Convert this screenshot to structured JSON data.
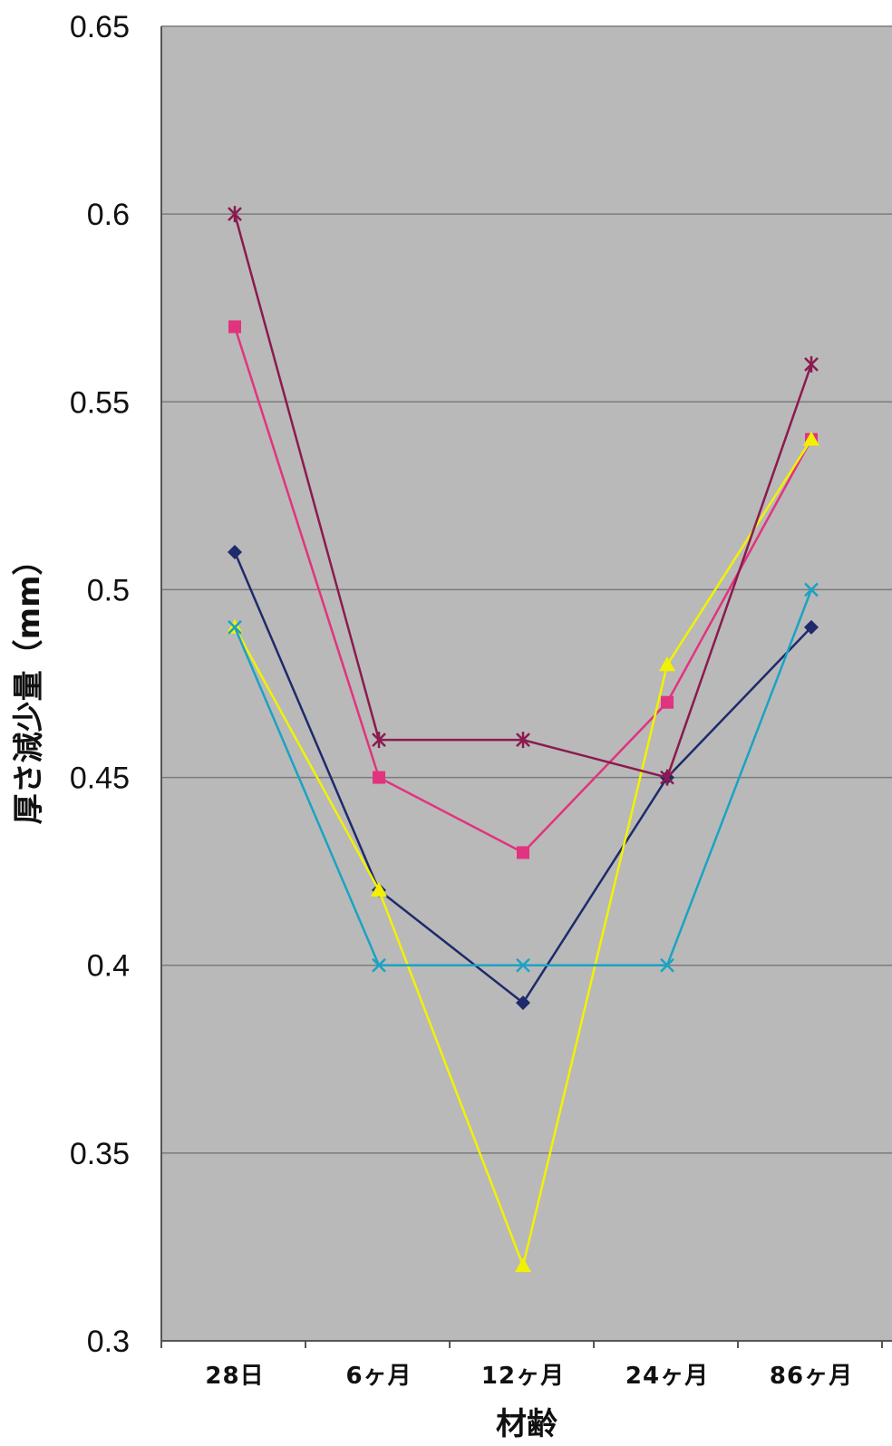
{
  "chart_data": {
    "type": "line",
    "xlabel": "材齢",
    "ylabel": "厚さ減少量（mm）",
    "categories": [
      "28日",
      "6ヶ月",
      "12ヶ月",
      "24ヶ月",
      "86ヶ月"
    ],
    "ylim": [
      0.3,
      0.65
    ],
    "yticks": [
      "0.65",
      "0.6",
      "0.55",
      "0.5",
      "0.45",
      "0.4",
      "0.35",
      "0.3"
    ],
    "ytick_values": [
      0.65,
      0.6,
      0.55,
      0.5,
      0.45,
      0.4,
      0.35,
      0.3
    ],
    "grid": "horizontal",
    "plot_background": "#b9b9b9",
    "series": [
      {
        "values": [
          0.51,
          0.42,
          0.39,
          0.45,
          0.49
        ],
        "color": "#1f2a6b",
        "marker": "diamond"
      },
      {
        "values": [
          0.57,
          0.45,
          0.43,
          0.47,
          0.54
        ],
        "color": "#e2337f",
        "marker": "square"
      },
      {
        "values": [
          0.49,
          0.42,
          0.32,
          0.48,
          0.54
        ],
        "color": "#f2f200",
        "marker": "triangle"
      },
      {
        "values": [
          0.49,
          0.4,
          0.4,
          0.4,
          0.5
        ],
        "color": "#1aa3c4",
        "marker": "x"
      },
      {
        "values": [
          0.6,
          0.46,
          0.46,
          0.45,
          0.56
        ],
        "color": "#8b1a4f",
        "marker": "star"
      }
    ]
  }
}
